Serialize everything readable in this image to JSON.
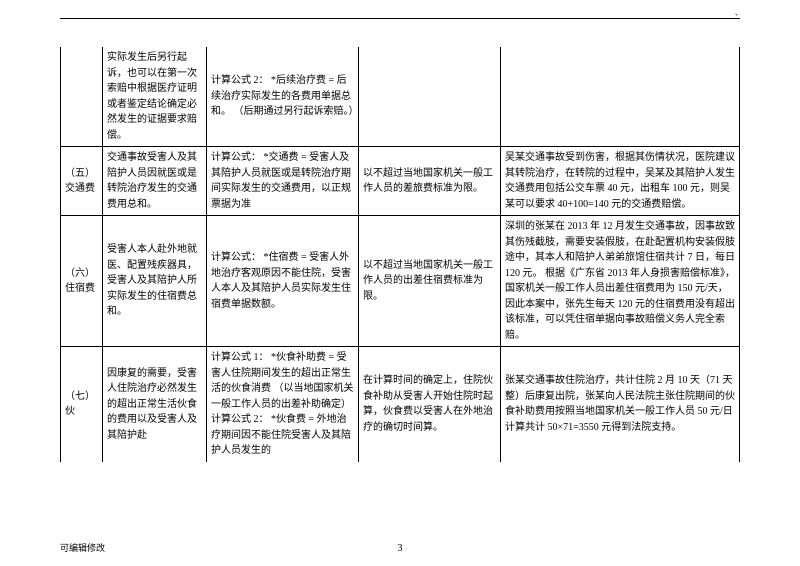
{
  "cornerMark": "、",
  "row0": {
    "c0": "",
    "c1": "实际发生后另行起诉，也可以在第一次索赔中根据医疗证明或者鉴定结论确定必然发生的证据要求赔偿。",
    "c2": "计算公式 2：\n*后续治疗费 = 后续治疗实际发生的各费用单据总和。\n（后期通过另行起诉索赔。）",
    "c3": "",
    "c4": ""
  },
  "row1": {
    "c0": "（五）交通费",
    "c1": "交通事故受害人及其陪护人员因就医或是转院治疗发生的交通费用总和。",
    "c2": "计算公式：\n*交通费 = 受害人及其陪护人员就医或是转院治疗期间实际发生的交通费用，以正规票据为准",
    "c3": "以不超过当地国家机关一般工作人员的差旅费标准为限。",
    "c4": "吴某交通事故受到伤害，根据其伤情状况，医院建议其转院治疗，在转院的过程中，吴某及其陪护人发生交通费用包括公交车票 40 元，出租车 100 元，则吴某可以要求 40+100=140 元的交通费赔偿。"
  },
  "row2": {
    "c0": "（六）住宿费",
    "c1": "受害人本人赴外地就医、配置残疾器具，受害人及其陪护人所实际发生的住宿费总和。",
    "c2": "计算公式：\n*住宿费 = 受害人外地治疗客观原因不能住院，受害人本人及其陪护人员实际发生住宿费单据数额。",
    "c3": "以不超过当地国家机关一般工作人员的出差住宿费标准为限。",
    "c4": "深圳的张某在 2013 年 12 月发生交通事故，因事故致其伤残截肢，需要安装假肢，在赴配置机构安装假肢途中，其本人和陪护人弟弟旅馆住宿共计 7 日，每日 120 元。\n根据《广东省 2013 年人身损害赔偿标准》，国家机关一般工作人员出差住宿费用为 150 元/天，因此本案中，张先生每天 120 元的住宿费用没有超出该标准，可以凭住宿单据向事故赔偿义务人完全索赔。"
  },
  "row3": {
    "c0": "（七）伙",
    "c1": "因康复的需要，受害人住院治疗必然发生的超出正常生活伙食的费用以及受害人及其陪护赴",
    "c2": "计算公式 1：\n*伙食补助费 = 受害人住院期间发生的超出正常生活的伙食消费\n（以当地国家机关一般工作人员的出差补助确定）\n计算公式 2：\n*伙食费 = 外地治疗期间因不能住院受害人及其陪护人员发生的",
    "c3": "在计算时间的确定上，住院伙食补助从受害人开始住院时起算，伙食费以受害人在外地治疗的确切时间算。",
    "c4": "张某交通事故住院治疗，共计住院 2 月 10 天（71 天整）后康复出院，张某向人民法院主张住院期间的伙食补助费用按照当地国家机关一般工作人员 50 元/日计算共计 50×71=3550 元得到法院支持。"
  },
  "footerLeft": "可编辑修改",
  "footerPage": "3"
}
